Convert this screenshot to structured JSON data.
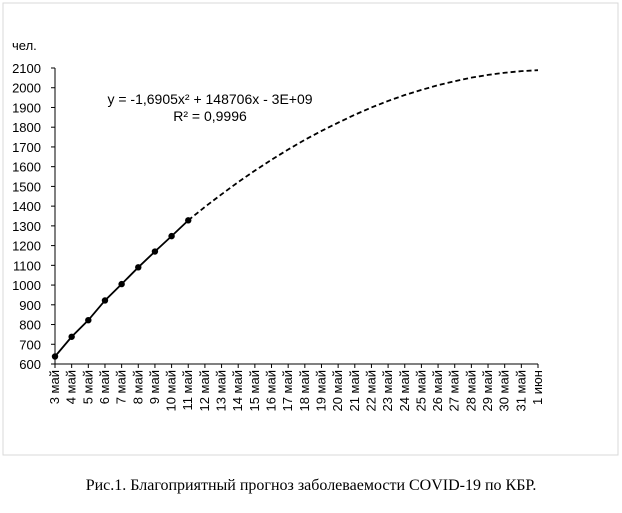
{
  "chart_data": {
    "type": "line",
    "y_unit_label": "чел.",
    "caption": "Рис.1. Благоприятный прогноз заболеваемости COVID-19 по КБР.",
    "annotations": [
      "y = -1,6905x² + 148706x - 3E+09",
      "R² = 0,9996"
    ],
    "categories": [
      "3 май",
      "4 май",
      "5 май",
      "6 май",
      "7 май",
      "8 май",
      "9 май",
      "10 май",
      "11 май",
      "12 май",
      "13 май",
      "14 май",
      "15 май",
      "16 май",
      "17 май",
      "18 май",
      "19 май",
      "20 май",
      "21 май",
      "22 май",
      "23 май",
      "24 май",
      "25 май",
      "26 май",
      "27 май",
      "28 май",
      "29 май",
      "30 май",
      "31 май",
      "1 июн"
    ],
    "series": [
      {
        "color": "#000000",
        "dash": false,
        "markers": true,
        "values": [
          638,
          738,
          822,
          922,
          1005,
          1090,
          1170,
          1248,
          1328,
          null,
          null,
          null,
          null,
          null,
          null,
          null,
          null,
          null,
          null,
          null,
          null,
          null,
          null,
          null,
          null,
          null,
          null,
          null,
          null,
          null
        ]
      },
      {
        "color": "#000000",
        "dash": true,
        "markers": false,
        "values": [
          null,
          null,
          null,
          null,
          null,
          null,
          null,
          null,
          1328,
          1396,
          1460,
          1522,
          1580,
          1635,
          1687,
          1736,
          1781,
          1823,
          1863,
          1900,
          1933,
          1963,
          1989,
          2013,
          2033,
          2051,
          2065,
          2076,
          2084,
          2089
        ]
      }
    ],
    "ylim": [
      600,
      2100
    ],
    "yticks": [
      600,
      700,
      800,
      900,
      1000,
      1100,
      1200,
      1300,
      1400,
      1500,
      1600,
      1700,
      1800,
      1900,
      2000,
      2100
    ],
    "grid": false
  }
}
